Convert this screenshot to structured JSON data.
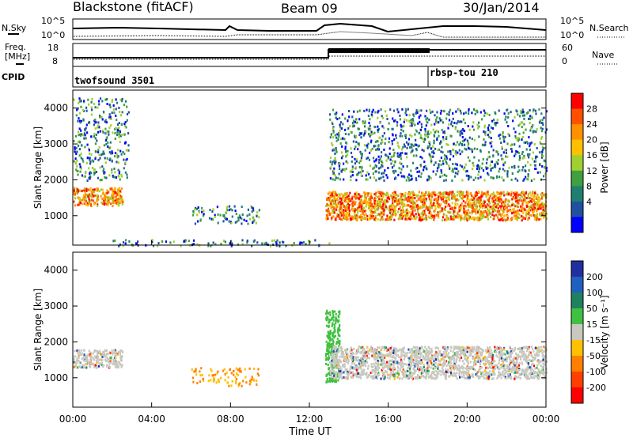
{
  "header": {
    "station": "Blackstone (fitACF)",
    "beam": "Beam 09",
    "date": "30/Jan/2014"
  },
  "panels": {
    "noise": {
      "left_label": "N.Sky",
      "right_label": "N.Search",
      "ticks_left": [
        "10^5",
        "10^0"
      ],
      "ticks_right": [
        "10^5",
        "10^0"
      ]
    },
    "freq": {
      "left_label_top": "Freq.",
      "left_label_unit": "[MHz]",
      "right_label": "Nave",
      "ticks_left": [
        "18",
        "8"
      ],
      "ticks_right": [
        "60",
        "0"
      ]
    },
    "cpid": {
      "label": "CPID",
      "segments": [
        {
          "name": "twofsound 3501",
          "start": "00:00"
        },
        {
          "name": "rbsp-tou 210",
          "start": "18:00"
        }
      ]
    }
  },
  "chart_data": [
    {
      "type": "heatmap",
      "name": "power",
      "xlabel": "",
      "ylabel": "Slant Range [km]",
      "x_ticks": [
        "00:00",
        "04:00",
        "08:00",
        "12:00",
        "16:00",
        "20:00",
        "00:00"
      ],
      "y_ticks": [
        1000,
        2000,
        3000,
        4000
      ],
      "xlim_hours": [
        0,
        24
      ],
      "ylim_km": [
        180,
        4500
      ],
      "colorbar": {
        "label": "Power [dB]",
        "ticks": [
          "28",
          "24",
          "20",
          "16",
          "12",
          "8",
          "4"
        ],
        "colors": [
          "#ff0000",
          "#ff5000",
          "#ff9000",
          "#ffc000",
          "#a0d030",
          "#40a040",
          "#208070",
          "#2050a0",
          "#0000ff"
        ]
      },
      "echo_regions": [
        {
          "t": [
            0.0,
            2.5
          ],
          "range_km": [
            1300,
            1800
          ],
          "level": "high"
        },
        {
          "t": [
            0.0,
            2.8
          ],
          "range_km": [
            2000,
            4300
          ],
          "level": "low"
        },
        {
          "t": [
            6.0,
            9.5
          ],
          "range_km": [
            800,
            1300
          ],
          "level": "low"
        },
        {
          "t": [
            2.0,
            13.0
          ],
          "range_km": [
            180,
            350
          ],
          "level": "low"
        },
        {
          "t": [
            12.8,
            24.0
          ],
          "range_km": [
            900,
            1700
          ],
          "level": "high"
        },
        {
          "t": [
            13.0,
            24.0
          ],
          "range_km": [
            2000,
            4000
          ],
          "level": "low"
        }
      ]
    },
    {
      "type": "heatmap",
      "name": "velocity",
      "xlabel": "Time UT",
      "ylabel": "Slant Range [km]",
      "x_ticks": [
        "00:00",
        "04:00",
        "08:00",
        "12:00",
        "16:00",
        "20:00",
        "00:00"
      ],
      "y_ticks": [
        1000,
        2000,
        3000,
        4000
      ],
      "xlim_hours": [
        0,
        24
      ],
      "ylim_km": [
        180,
        4500
      ],
      "colorbar": {
        "label": "Velocity [m s⁻¹]",
        "ticks": [
          "200",
          "100",
          "50",
          "15",
          "-15",
          "-50",
          "-100",
          "-200"
        ],
        "colors": [
          "#2030a0",
          "#2060c0",
          "#208060",
          "#40c040",
          "#c8c8c0",
          "#ffc000",
          "#ff8000",
          "#ff4000",
          "#ff0000"
        ]
      },
      "echo_regions": [
        {
          "t": [
            0.0,
            2.5
          ],
          "range_km": [
            1300,
            1800
          ],
          "level": "zero"
        },
        {
          "t": [
            6.0,
            9.5
          ],
          "range_km": [
            800,
            1300
          ],
          "level": "negative"
        },
        {
          "t": [
            12.8,
            13.5
          ],
          "range_km": [
            900,
            2900
          ],
          "level": "positive"
        },
        {
          "t": [
            13.0,
            24.0
          ],
          "range_km": [
            1000,
            1900
          ],
          "level": "zero"
        }
      ]
    }
  ]
}
